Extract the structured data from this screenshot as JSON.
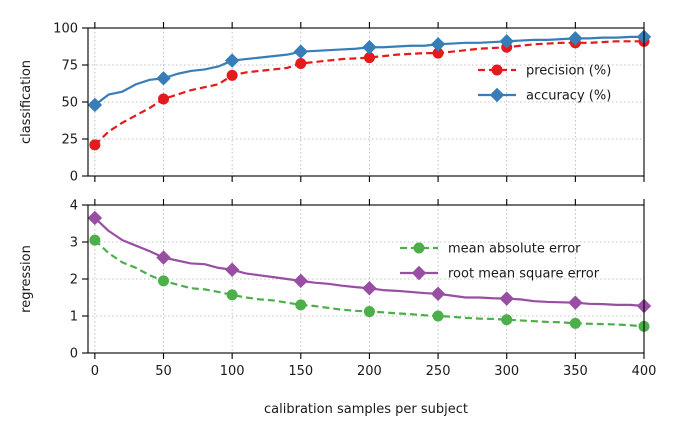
{
  "chart_data": [
    {
      "type": "line",
      "ylabel": "classification",
      "xlim": [
        -5,
        400
      ],
      "ylim": [
        0,
        100
      ],
      "x_ticks": [
        0,
        50,
        100,
        150,
        200,
        250,
        300,
        350,
        400
      ],
      "y_ticks": [
        0,
        25,
        50,
        75,
        100
      ],
      "grid": true,
      "legend_position": "right",
      "series": [
        {
          "name": "precision (%)",
          "color": "#e41a1c",
          "line_style": "dashed",
          "marker": "circle",
          "x": [
            0,
            10,
            20,
            30,
            40,
            50,
            60,
            70,
            80,
            90,
            100,
            110,
            120,
            130,
            140,
            150,
            160,
            170,
            180,
            190,
            200,
            210,
            220,
            230,
            240,
            250,
            260,
            270,
            280,
            290,
            300,
            310,
            320,
            330,
            340,
            350,
            360,
            370,
            380,
            390,
            400
          ],
          "y": [
            21,
            30,
            36,
            41,
            46,
            52,
            55,
            58,
            60,
            62,
            68,
            70,
            71,
            72,
            73,
            76,
            77,
            78,
            79,
            79.5,
            80,
            81,
            82,
            82.5,
            83,
            83,
            84,
            85,
            86,
            86.5,
            87,
            88,
            89,
            89.5,
            90,
            90,
            90,
            90.5,
            91,
            91,
            91
          ]
        },
        {
          "name": "accuracy (%)",
          "color": "#377eb8",
          "line_style": "solid",
          "marker": "diamond",
          "x": [
            0,
            10,
            20,
            30,
            40,
            50,
            60,
            70,
            80,
            90,
            100,
            110,
            120,
            130,
            140,
            150,
            160,
            170,
            180,
            190,
            200,
            210,
            220,
            230,
            240,
            250,
            260,
            270,
            280,
            290,
            300,
            310,
            320,
            330,
            340,
            350,
            360,
            370,
            380,
            390,
            400
          ],
          "y": [
            48,
            55,
            57,
            62,
            65,
            66,
            69,
            71,
            72,
            74,
            78,
            79,
            80,
            81,
            82,
            84,
            84.5,
            85,
            85.5,
            86,
            87,
            87,
            87.5,
            88,
            88,
            89,
            89.5,
            90,
            90,
            90.5,
            91,
            91.5,
            92,
            92,
            92.5,
            93,
            93,
            93.5,
            93.5,
            94,
            94
          ]
        }
      ]
    },
    {
      "type": "line",
      "ylabel": "regression",
      "xlabel": "calibration samples per subject",
      "xlim": [
        -5,
        400
      ],
      "ylim": [
        0,
        4
      ],
      "x_ticks": [
        0,
        50,
        100,
        150,
        200,
        250,
        300,
        350,
        400
      ],
      "y_ticks": [
        0,
        1,
        2,
        3,
        4
      ],
      "grid": true,
      "legend_position": "right",
      "series": [
        {
          "name": "mean absolute error",
          "color": "#4daf4a",
          "line_style": "dashed",
          "marker": "circle",
          "x": [
            0,
            10,
            20,
            30,
            40,
            50,
            60,
            70,
            80,
            90,
            100,
            110,
            120,
            130,
            140,
            150,
            160,
            170,
            180,
            190,
            200,
            210,
            220,
            230,
            240,
            250,
            260,
            270,
            280,
            290,
            300,
            310,
            320,
            330,
            340,
            350,
            360,
            370,
            380,
            390,
            400
          ],
          "y": [
            3.05,
            2.7,
            2.45,
            2.3,
            2.1,
            1.95,
            1.85,
            1.75,
            1.72,
            1.65,
            1.57,
            1.5,
            1.45,
            1.42,
            1.36,
            1.3,
            1.27,
            1.22,
            1.17,
            1.14,
            1.12,
            1.1,
            1.07,
            1.05,
            1.02,
            1.0,
            0.98,
            0.95,
            0.93,
            0.92,
            0.9,
            0.88,
            0.86,
            0.84,
            0.83,
            0.8,
            0.79,
            0.78,
            0.77,
            0.75,
            0.72
          ]
        },
        {
          "name": "root mean square error",
          "color": "#984ea3",
          "line_style": "solid",
          "marker": "diamond",
          "x": [
            0,
            10,
            20,
            30,
            40,
            50,
            60,
            70,
            80,
            90,
            100,
            110,
            120,
            130,
            140,
            150,
            160,
            170,
            180,
            190,
            200,
            210,
            220,
            230,
            240,
            250,
            260,
            270,
            280,
            290,
            300,
            310,
            320,
            330,
            340,
            350,
            360,
            370,
            380,
            390,
            400
          ],
          "y": [
            3.65,
            3.3,
            3.05,
            2.9,
            2.75,
            2.58,
            2.5,
            2.42,
            2.4,
            2.3,
            2.25,
            2.15,
            2.1,
            2.05,
            2.0,
            1.95,
            1.9,
            1.87,
            1.82,
            1.78,
            1.75,
            1.7,
            1.68,
            1.65,
            1.62,
            1.6,
            1.55,
            1.5,
            1.5,
            1.48,
            1.47,
            1.45,
            1.4,
            1.38,
            1.37,
            1.36,
            1.33,
            1.32,
            1.3,
            1.3,
            1.27
          ]
        }
      ]
    }
  ]
}
